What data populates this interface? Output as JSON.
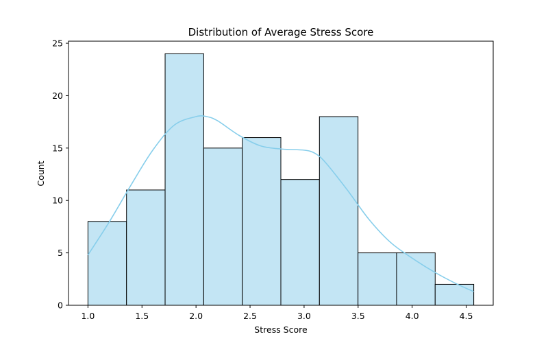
{
  "chart_data": {
    "type": "bar",
    "title": "Distribution of Average Stress Score",
    "xlabel": "Stress Score",
    "ylabel": "Count",
    "bin_edges": [
      1.0,
      1.357,
      1.714,
      2.071,
      2.428,
      2.785,
      3.142,
      3.499,
      3.856,
      4.213,
      4.57
    ],
    "values": [
      8,
      11,
      24,
      15,
      16,
      12,
      18,
      5,
      5,
      2
    ],
    "xlim": [
      0.82,
      4.75
    ],
    "ylim": [
      0,
      25.2
    ],
    "xticks": [
      1.0,
      1.5,
      2.0,
      2.5,
      3.0,
      3.5,
      4.0,
      4.5
    ],
    "xtick_labels": [
      "1.0",
      "1.5",
      "2.0",
      "2.5",
      "3.0",
      "3.5",
      "4.0",
      "4.5"
    ],
    "yticks": [
      0,
      5,
      10,
      15,
      20,
      25
    ],
    "ytick_labels": [
      "0",
      "5",
      "10",
      "15",
      "20",
      "25"
    ],
    "kde": {
      "x": [
        1.0,
        1.2,
        1.4,
        1.6,
        1.8,
        2.0,
        2.1,
        2.2,
        2.4,
        2.6,
        2.8,
        3.0,
        3.1,
        3.2,
        3.4,
        3.6,
        3.8,
        4.0,
        4.2,
        4.4,
        4.57
      ],
      "y": [
        4.8,
        8.0,
        11.5,
        14.8,
        17.2,
        18.0,
        18.0,
        17.6,
        16.2,
        15.2,
        14.9,
        14.8,
        14.5,
        13.6,
        11.0,
        8.2,
        6.0,
        4.5,
        3.2,
        2.1,
        1.3
      ]
    },
    "grid": false,
    "legend": false,
    "colors": {
      "bar_fill": "#c3e5f4",
      "bar_edge": "#000000",
      "kde_line": "#87ceeb"
    }
  }
}
